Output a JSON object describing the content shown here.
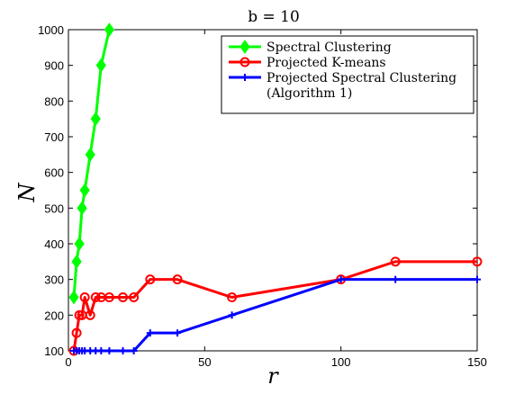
{
  "chart_data": {
    "type": "line",
    "title": "b = 10",
    "xlabel": "r",
    "ylabel": "N",
    "xlim": [
      0,
      150
    ],
    "ylim": [
      100,
      1000
    ],
    "x_ticks": [
      "0",
      "50",
      "100",
      "150"
    ],
    "y_ticks": [
      "100",
      "200",
      "300",
      "400",
      "500",
      "600",
      "700",
      "800",
      "900",
      "1000"
    ],
    "grid": false,
    "legend_position": "top-right",
    "series": [
      {
        "name": "Spectral Clustering",
        "color": "#00ff00",
        "marker": "diamond",
        "x": [
          2,
          3,
          4,
          5,
          6,
          8,
          10,
          12,
          15
        ],
        "y": [
          250,
          350,
          400,
          500,
          550,
          650,
          750,
          900,
          1000
        ]
      },
      {
        "name": "Projected K-means",
        "color": "#ff0000",
        "marker": "circle",
        "x": [
          2,
          3,
          4,
          5,
          6,
          8,
          10,
          12,
          15,
          20,
          24,
          30,
          40,
          60,
          100,
          120,
          150
        ],
        "y": [
          100,
          150,
          200,
          200,
          250,
          200,
          250,
          250,
          250,
          250,
          250,
          300,
          300,
          250,
          300,
          350,
          350
        ]
      },
      {
        "name": "Projected Spectral Clustering",
        "name_line2": "(Algorithm 1)",
        "color": "#0000ff",
        "marker": "plus",
        "x": [
          2,
          3,
          4,
          5,
          6,
          8,
          10,
          12,
          15,
          20,
          24,
          30,
          40,
          60,
          100,
          120,
          150
        ],
        "y": [
          100,
          100,
          100,
          100,
          100,
          100,
          100,
          100,
          100,
          100,
          100,
          150,
          150,
          200,
          300,
          300,
          300
        ]
      }
    ]
  }
}
